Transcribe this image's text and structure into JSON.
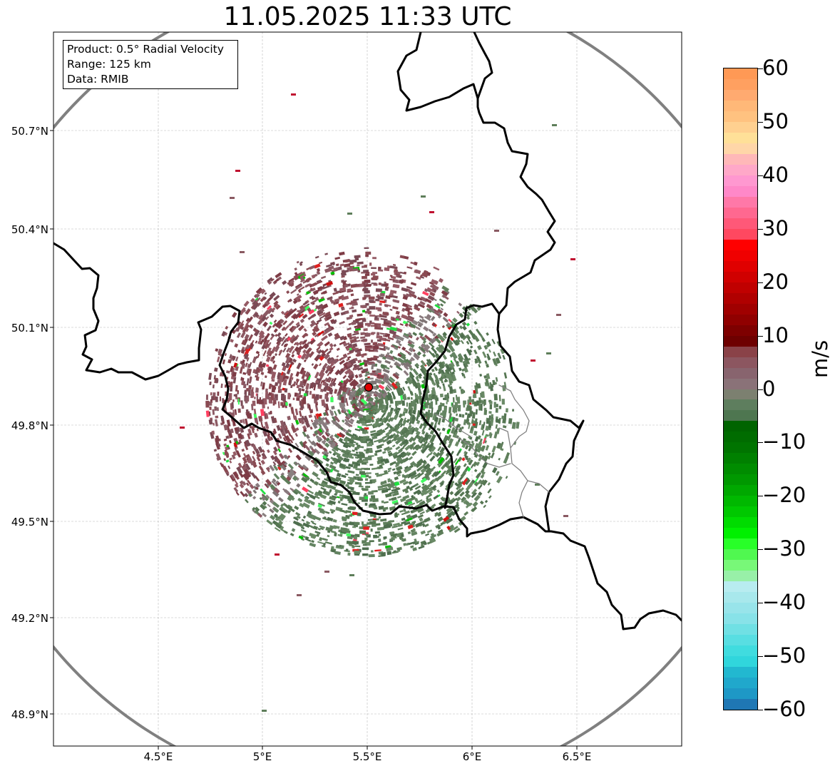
{
  "title": "11.05.2025 11:33 UTC",
  "infobox": {
    "product": "Product: 0.5° Radial Velocity",
    "range": "Range: 125 km",
    "data": "Data: RMIB"
  },
  "map": {
    "lon_range": [
      4.0,
      7.0
    ],
    "lat_range": [
      48.8,
      51.0
    ],
    "radar_site": {
      "lon": 5.5,
      "lat": 49.92
    },
    "range_ring_km": 125,
    "lat_ticks": [
      "50.7°N",
      "50.4°N",
      "50.1°N",
      "49.8°N",
      "49.5°N",
      "49.2°N",
      "48.9°N"
    ],
    "lon_ticks": [
      "4.5°E",
      "5°E",
      "5.5°E",
      "6°E",
      "6.5°E"
    ],
    "colors": {
      "border": "#000000",
      "ring": "#808080",
      "radar_site": "#e00000",
      "inbound_tone": "#5e7a5a",
      "outbound_tone": "#8a5a62"
    }
  },
  "colorbar": {
    "unit": "m/s",
    "min": -60,
    "max": 60,
    "tick_labels": [
      "60",
      "50",
      "40",
      "30",
      "20",
      "10",
      "0",
      "−10",
      "−20",
      "−30",
      "−40",
      "−50",
      "−60"
    ],
    "tick_values": [
      60,
      50,
      40,
      30,
      20,
      10,
      0,
      -10,
      -20,
      -30,
      -40,
      -50,
      -60
    ],
    "bands": [
      {
        "from": 58,
        "to": 60,
        "color": "#ff9955"
      },
      {
        "from": 56,
        "to": 58,
        "color": "#ffa060"
      },
      {
        "from": 54,
        "to": 56,
        "color": "#ffaa70"
      },
      {
        "from": 52,
        "to": 54,
        "color": "#ffb878"
      },
      {
        "from": 50,
        "to": 52,
        "color": "#ffc280"
      },
      {
        "from": 48,
        "to": 50,
        "color": "#ffd090"
      },
      {
        "from": 46,
        "to": 48,
        "color": "#ffe098"
      },
      {
        "from": 44,
        "to": 46,
        "color": "#ffd6a8"
      },
      {
        "from": 42,
        "to": 44,
        "color": "#ffb8b8"
      },
      {
        "from": 40,
        "to": 42,
        "color": "#ffa8c8"
      },
      {
        "from": 38,
        "to": 40,
        "color": "#ff98d0"
      },
      {
        "from": 36,
        "to": 38,
        "color": "#ff88c8"
      },
      {
        "from": 34,
        "to": 36,
        "color": "#ff78a8"
      },
      {
        "from": 32,
        "to": 34,
        "color": "#ff6890"
      },
      {
        "from": 30,
        "to": 32,
        "color": "#ff5878"
      },
      {
        "from": 28,
        "to": 30,
        "color": "#ff4860"
      },
      {
        "from": 26,
        "to": 28,
        "color": "#ff0000"
      },
      {
        "from": 24,
        "to": 26,
        "color": "#f00000"
      },
      {
        "from": 22,
        "to": 24,
        "color": "#e00000"
      },
      {
        "from": 20,
        "to": 22,
        "color": "#d00000"
      },
      {
        "from": 18,
        "to": 20,
        "color": "#c00000"
      },
      {
        "from": 16,
        "to": 18,
        "color": "#b00000"
      },
      {
        "from": 14,
        "to": 16,
        "color": "#a00000"
      },
      {
        "from": 12,
        "to": 14,
        "color": "#900000"
      },
      {
        "from": 10,
        "to": 12,
        "color": "#7e0000"
      },
      {
        "from": 8,
        "to": 10,
        "color": "#6e0000"
      },
      {
        "from": 6,
        "to": 8,
        "color": "#8a4248"
      },
      {
        "from": 4,
        "to": 6,
        "color": "#8c5660"
      },
      {
        "from": 2,
        "to": 4,
        "color": "#88646e"
      },
      {
        "from": 0,
        "to": 2,
        "color": "#8a7278"
      },
      {
        "from": -2,
        "to": 0,
        "color": "#7c8070"
      },
      {
        "from": -4,
        "to": -2,
        "color": "#5e7e5e"
      },
      {
        "from": -6,
        "to": -4,
        "color": "#4e7650"
      },
      {
        "from": -8,
        "to": -6,
        "color": "#006400"
      },
      {
        "from": -10,
        "to": -8,
        "color": "#006c00"
      },
      {
        "from": -12,
        "to": -10,
        "color": "#007400"
      },
      {
        "from": -14,
        "to": -12,
        "color": "#008000"
      },
      {
        "from": -16,
        "to": -14,
        "color": "#008c00"
      },
      {
        "from": -18,
        "to": -16,
        "color": "#009800"
      },
      {
        "from": -20,
        "to": -18,
        "color": "#00a800"
      },
      {
        "from": -22,
        "to": -20,
        "color": "#00b800"
      },
      {
        "from": -24,
        "to": -22,
        "color": "#00c800"
      },
      {
        "from": -26,
        "to": -24,
        "color": "#00dc00"
      },
      {
        "from": -28,
        "to": -26,
        "color": "#00f000"
      },
      {
        "from": -30,
        "to": -28,
        "color": "#28ff28"
      },
      {
        "from": -32,
        "to": -30,
        "color": "#50f850"
      },
      {
        "from": -34,
        "to": -32,
        "color": "#78f878"
      },
      {
        "from": -36,
        "to": -34,
        "color": "#98f0a8"
      },
      {
        "from": -38,
        "to": -36,
        "color": "#b8ecf0"
      },
      {
        "from": -40,
        "to": -38,
        "color": "#a8e8ec"
      },
      {
        "from": -42,
        "to": -40,
        "color": "#98e4ea"
      },
      {
        "from": -44,
        "to": -42,
        "color": "#88e2e8"
      },
      {
        "from": -46,
        "to": -44,
        "color": "#70e0e4"
      },
      {
        "from": -48,
        "to": -46,
        "color": "#58dee2"
      },
      {
        "from": -50,
        "to": -48,
        "color": "#40dcdf"
      },
      {
        "from": -52,
        "to": -50,
        "color": "#30d6dc"
      },
      {
        "from": -54,
        "to": -52,
        "color": "#22b8d0"
      },
      {
        "from": -56,
        "to": -54,
        "color": "#20a8cc"
      },
      {
        "from": -58,
        "to": -56,
        "color": "#1e98c6"
      },
      {
        "from": -60,
        "to": -58,
        "color": "#1f77b4"
      }
    ]
  }
}
